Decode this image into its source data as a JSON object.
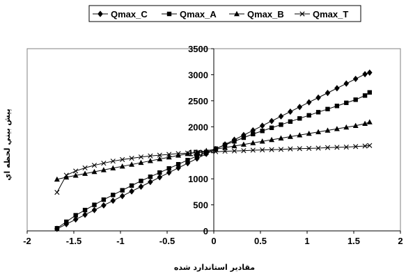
{
  "chart_data": {
    "type": "line",
    "title": "",
    "xlabel": "مقادير استاندارد شده",
    "ylabel": "پيش بيني لحظه اي",
    "xlim": [
      -2,
      2
    ],
    "ylim": [
      0,
      3500
    ],
    "xticks": [
      "-2",
      "-1.5",
      "-1",
      "-0.5",
      "0",
      "0.5",
      "1",
      "1.5",
      "2"
    ],
    "yticks": [
      "0",
      "500",
      "1000",
      "1500",
      "2000",
      "2500",
      "3000",
      "3500"
    ],
    "grid": false,
    "legend_position": "top",
    "series": [
      {
        "name": "Qmax_C",
        "marker": "diamond",
        "x": [
          -1.68,
          -1.58,
          -1.48,
          -1.38,
          -1.28,
          -1.18,
          -1.08,
          -0.98,
          -0.88,
          -0.78,
          -0.68,
          -0.58,
          -0.48,
          -0.38,
          -0.28,
          -0.18,
          -0.08,
          0.02,
          0.12,
          0.22,
          0.32,
          0.42,
          0.52,
          0.62,
          0.72,
          0.82,
          0.92,
          1.02,
          1.12,
          1.22,
          1.32,
          1.42,
          1.52,
          1.62,
          1.67
        ],
        "y": [
          40,
          130,
          220,
          310,
          400,
          490,
          580,
          670,
          760,
          850,
          940,
          1030,
          1120,
          1210,
          1300,
          1390,
          1480,
          1570,
          1660,
          1750,
          1840,
          1930,
          2020,
          2110,
          2200,
          2290,
          2380,
          2470,
          2560,
          2650,
          2740,
          2830,
          2920,
          3010,
          3040
        ]
      },
      {
        "name": "Qmax_A",
        "marker": "square",
        "x": [
          -1.68,
          -1.58,
          -1.48,
          -1.38,
          -1.28,
          -1.18,
          -1.08,
          -0.98,
          -0.88,
          -0.78,
          -0.68,
          -0.58,
          -0.48,
          -0.38,
          -0.28,
          -0.18,
          -0.08,
          0.02,
          0.12,
          0.22,
          0.32,
          0.42,
          0.52,
          0.62,
          0.72,
          0.82,
          0.92,
          1.02,
          1.12,
          1.22,
          1.32,
          1.42,
          1.52,
          1.62,
          1.67
        ],
        "y": [
          50,
          175,
          300,
          400,
          500,
          600,
          690,
          780,
          870,
          960,
          1040,
          1120,
          1200,
          1280,
          1360,
          1440,
          1510,
          1580,
          1650,
          1720,
          1790,
          1860,
          1920,
          1980,
          2040,
          2100,
          2160,
          2220,
          2280,
          2340,
          2400,
          2460,
          2520,
          2600,
          2660
        ]
      },
      {
        "name": "Qmax_B",
        "marker": "triangle",
        "x": [
          -1.68,
          -1.58,
          -1.48,
          -1.38,
          -1.28,
          -1.18,
          -1.08,
          -0.98,
          -0.88,
          -0.78,
          -0.68,
          -0.58,
          -0.48,
          -0.38,
          -0.28,
          -0.18,
          -0.08,
          0.02,
          0.12,
          0.22,
          0.32,
          0.42,
          0.52,
          0.62,
          0.72,
          0.82,
          0.92,
          1.02,
          1.12,
          1.22,
          1.32,
          1.42,
          1.52,
          1.62,
          1.67
        ],
        "y": [
          990,
          1030,
          1065,
          1100,
          1135,
          1170,
          1205,
          1240,
          1275,
          1310,
          1345,
          1380,
          1415,
          1450,
          1480,
          1510,
          1540,
          1570,
          1600,
          1630,
          1660,
          1690,
          1720,
          1750,
          1780,
          1810,
          1840,
          1870,
          1900,
          1930,
          1960,
          1990,
          2020,
          2060,
          2090
        ]
      },
      {
        "name": "Qmax_T",
        "marker": "x",
        "x": [
          -1.68,
          -1.58,
          -1.48,
          -1.38,
          -1.28,
          -1.18,
          -1.08,
          -0.98,
          -0.88,
          -0.78,
          -0.68,
          -0.58,
          -0.48,
          -0.38,
          -0.28,
          -0.18,
          -0.08,
          0.02,
          0.12,
          0.22,
          0.32,
          0.42,
          0.52,
          0.62,
          0.72,
          0.82,
          0.92,
          1.02,
          1.12,
          1.22,
          1.32,
          1.42,
          1.52,
          1.62,
          1.67
        ],
        "y": [
          740,
          1070,
          1150,
          1210,
          1260,
          1300,
          1340,
          1370,
          1395,
          1420,
          1440,
          1455,
          1470,
          1485,
          1495,
          1505,
          1515,
          1520,
          1530,
          1535,
          1540,
          1550,
          1555,
          1560,
          1565,
          1575,
          1580,
          1585,
          1590,
          1600,
          1605,
          1610,
          1620,
          1630,
          1640
        ]
      }
    ]
  }
}
